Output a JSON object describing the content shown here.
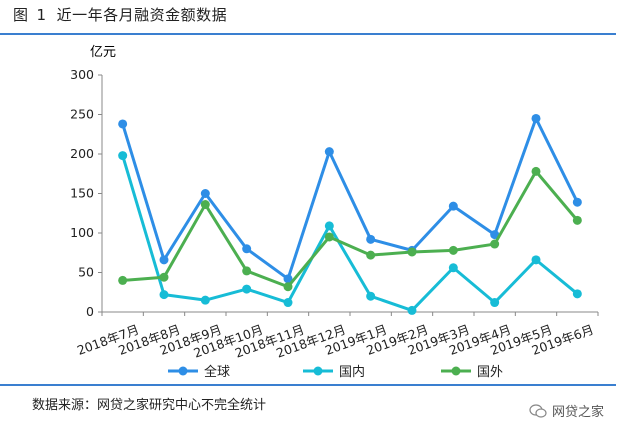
{
  "title": "近一年各月融资金额数据",
  "figure_label": "图",
  "figure_number": "1",
  "source": "数据来源：网贷之家研究中心不完全统计",
  "watermark": "网贷之家",
  "chart_data": {
    "type": "line",
    "ylabel": "亿元",
    "ylim": [
      0,
      300
    ],
    "yticks": [
      0,
      50,
      100,
      150,
      200,
      250,
      300
    ],
    "grid": false,
    "legend_position": "bottom",
    "categories": [
      "2018年7月",
      "2018年8月",
      "2018年9月",
      "2018年10月",
      "2018年11月",
      "2018年12月",
      "2019年1月",
      "2019年2月",
      "2019年3月",
      "2019年4月",
      "2019年5月",
      "2019年6月"
    ],
    "series": [
      {
        "name": "全球",
        "color": "#2e8ee6",
        "values": [
          238,
          66,
          150,
          80,
          42,
          203,
          92,
          78,
          134,
          98,
          245,
          139
        ]
      },
      {
        "name": "国内",
        "color": "#17bcd6",
        "values": [
          198,
          22,
          15,
          29,
          12,
          109,
          20,
          2,
          56,
          12,
          66,
          23
        ]
      },
      {
        "name": "国外",
        "color": "#4caf50",
        "values": [
          40,
          44,
          136,
          52,
          32,
          95,
          72,
          76,
          78,
          86,
          178,
          116
        ]
      }
    ]
  }
}
